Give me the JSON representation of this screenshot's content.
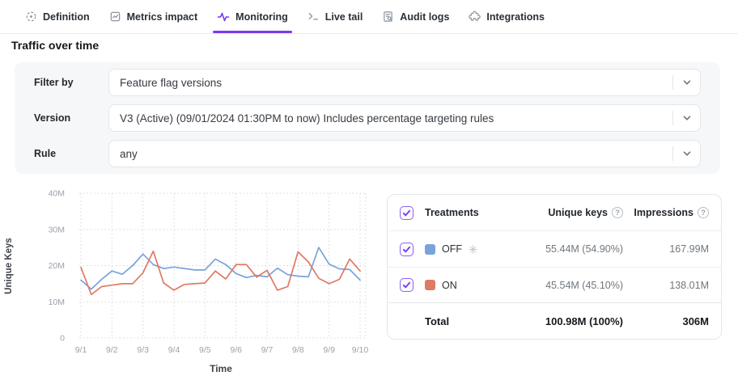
{
  "colors": {
    "accent": "#7c3aed",
    "off_series": "#7aa3dc",
    "on_series": "#df7a63"
  },
  "tabs": [
    {
      "label": "Definition",
      "icon": "target-icon",
      "active": false
    },
    {
      "label": "Metrics impact",
      "icon": "line-chart-icon",
      "active": false
    },
    {
      "label": "Monitoring",
      "icon": "pulse-icon",
      "active": true
    },
    {
      "label": "Live tail",
      "icon": "terminal-icon",
      "active": false
    },
    {
      "label": "Audit logs",
      "icon": "audit-log-icon",
      "active": false
    },
    {
      "label": "Integrations",
      "icon": "puzzle-icon",
      "active": false
    }
  ],
  "section_title": "Traffic over time",
  "filters": {
    "rows": [
      {
        "label": "Filter by",
        "value": "Feature flag versions"
      },
      {
        "label": "Version",
        "value": "V3 (Active) (09/01/2024 01:30PM to now) Includes percentage targeting rules"
      },
      {
        "label": "Rule",
        "value": "any"
      }
    ]
  },
  "chart_data": {
    "type": "line",
    "xlabel": "Time",
    "ylabel": "Unique Keys",
    "x_tick_labels": [
      "9/1",
      "9/2",
      "9/3",
      "9/4",
      "9/5",
      "9/6",
      "9/7",
      "9/8",
      "9/9",
      "9/10"
    ],
    "y_ticks": [
      {
        "value": 0,
        "label": "0"
      },
      {
        "value": 10,
        "label": "10M"
      },
      {
        "value": 20,
        "label": "20M"
      },
      {
        "value": 30,
        "label": "30M"
      },
      {
        "value": 40,
        "label": "40M"
      }
    ],
    "ylim": [
      0,
      40
    ],
    "unit": "M",
    "grid": "dotted",
    "points_per_day": 3,
    "series": [
      {
        "name": "OFF",
        "color": "#7aa3dc",
        "values": [
          16,
          13.5,
          16.2,
          18.5,
          17.6,
          20,
          23.2,
          20.3,
          19.2,
          19.6,
          19.2,
          18.8,
          18.8,
          21.8,
          20.3,
          17.8,
          16.7,
          17.3,
          16.9,
          19.3,
          17.5,
          17.1,
          16.9,
          25,
          20.4,
          19.1,
          18.9,
          16
        ]
      },
      {
        "name": "ON",
        "color": "#df7a63",
        "values": [
          19.5,
          12,
          14.2,
          14.6,
          15,
          15,
          18,
          24,
          15.2,
          13.2,
          14.8,
          15,
          15.2,
          18.5,
          16.3,
          20.3,
          20.3,
          16.8,
          18.7,
          13.2,
          14.2,
          23.8,
          21,
          16.5,
          15,
          16.2,
          21.8,
          18.5
        ]
      }
    ]
  },
  "table": {
    "headers": {
      "treatments": "Treatments",
      "unique_keys": "Unique keys",
      "impressions": "Impressions"
    },
    "rows": [
      {
        "treatment": "OFF",
        "color": "#7aa3dc",
        "is_default": true,
        "unique_keys": "55.44M (54.90%)",
        "impressions": "167.99M",
        "checked": true
      },
      {
        "treatment": "ON",
        "color": "#df7a63",
        "is_default": false,
        "unique_keys": "45.54M (45.10%)",
        "impressions": "138.01M",
        "checked": true
      }
    ],
    "total": {
      "label": "Total",
      "unique_keys": "100.98M (100%)",
      "impressions": "306M"
    }
  }
}
